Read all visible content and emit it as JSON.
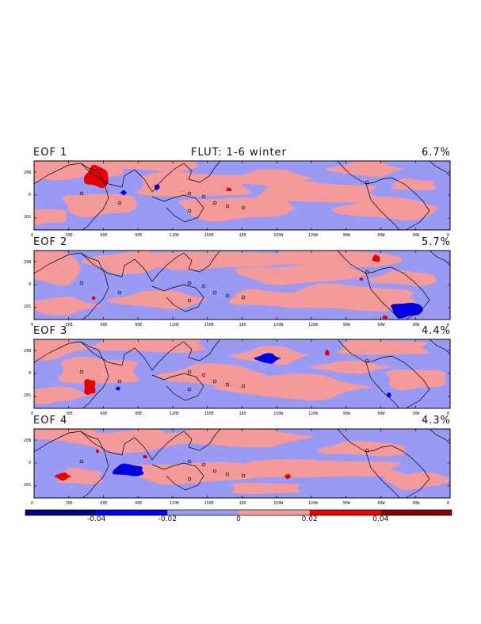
{
  "header": {
    "title": "FLUT: 1-6 winter"
  },
  "colors": {
    "strong_neg": "#00008c",
    "mid_neg": "#0000e6",
    "weak_neg": "#9a9af5",
    "weak_pos": "#f59a9a",
    "mid_pos": "#e60000",
    "strong_pos": "#8c0000",
    "coast": "#000000"
  },
  "panels": [
    {
      "label": "EOF 1",
      "variance": "6.7%"
    },
    {
      "label": "EOF 2",
      "variance": "5.7%"
    },
    {
      "label": "EOF 3",
      "variance": "4.4%"
    },
    {
      "label": "EOF 4",
      "variance": "4.3%"
    }
  ],
  "lat_ticks": [
    "20N",
    "0",
    "20S"
  ],
  "lon_ticks": [
    "0",
    "30E",
    "60E",
    "90E",
    "120E",
    "150E",
    "180",
    "150W",
    "120W",
    "90W",
    "60W",
    "30W",
    "0"
  ],
  "colorbar": {
    "labels": [
      "-0.04",
      "-0.02",
      "0",
      "0.02",
      "0.04"
    ],
    "levels": [
      -0.06,
      -0.04,
      -0.02,
      0,
      0.02,
      0.04,
      0.06
    ]
  }
}
